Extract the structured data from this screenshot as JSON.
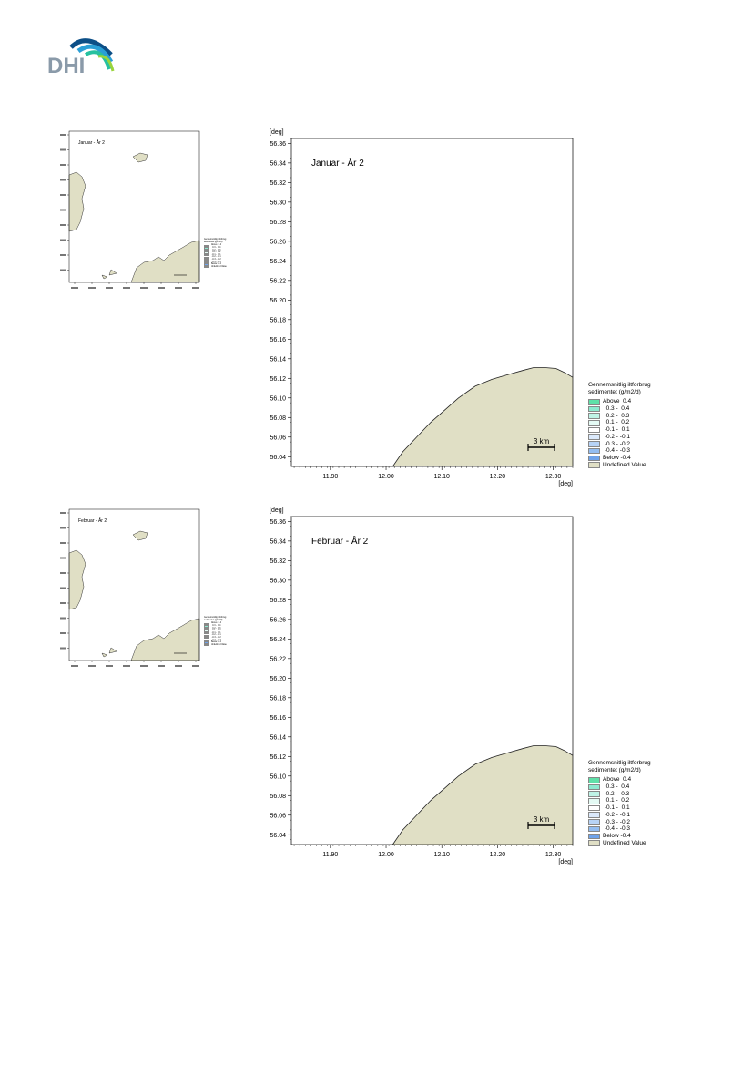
{
  "logo": {
    "text": "DHI",
    "colors": {
      "text": "#8a9aa9",
      "arc_dark": "#0c4f87",
      "arc_mid": "#2a9fd6",
      "arc_light": "#27c1a0",
      "arc_lime": "#9ad43c"
    }
  },
  "axis_unit": "[deg]",
  "x_ticks": [
    "11.90",
    "12.00",
    "12.10",
    "12.20",
    "12.30"
  ],
  "y_ticks": [
    "56.36",
    "56.34",
    "56.32",
    "56.30",
    "56.28",
    "56.26",
    "56.24",
    "56.22",
    "56.20",
    "56.18",
    "56.16",
    "56.14",
    "56.12",
    "56.10",
    "56.08",
    "56.06",
    "56.04"
  ],
  "scale_bar": "3 km",
  "legend": {
    "title_line1": "Gennemsnitlig iltforbrug",
    "title_line2": "sedimentet (g/m2/d)",
    "items": [
      {
        "label": "Above  0.4",
        "color": "#5fe0a8"
      },
      {
        "label": "  0.3 -  0.4",
        "color": "#8eead0"
      },
      {
        "label": "  0.2 -  0.3",
        "color": "#bff3e6"
      },
      {
        "label": "  0.1 -  0.2",
        "color": "#e4faf4"
      },
      {
        "label": " -0.1 -  0.1",
        "color": "#ffffff"
      },
      {
        "label": " -0.2 - -0.1",
        "color": "#dbe9fb"
      },
      {
        "label": " -0.3 - -0.2",
        "color": "#b7d3f6"
      },
      {
        "label": " -0.4 - -0.3",
        "color": "#93bdf1"
      },
      {
        "label": "Below -0.4",
        "color": "#6fa3ea"
      },
      {
        "label": "Undefined Value",
        "color": "#e0dfc5"
      }
    ]
  },
  "land_color": "#e0dfc5",
  "maps": [
    {
      "title": "Januar - År 2"
    },
    {
      "title": "Februar - År 2"
    }
  ]
}
